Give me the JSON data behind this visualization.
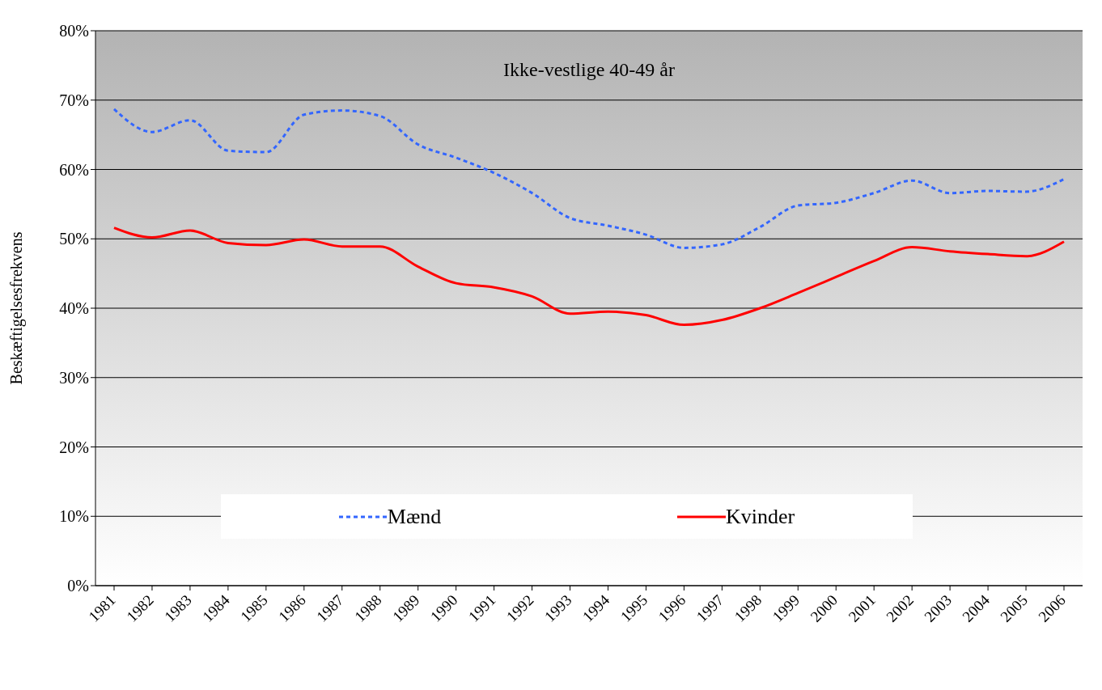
{
  "chart_data": {
    "type": "line",
    "title": "Ikke-vestlige 40-49 år",
    "ylabel": "Beskæftigelsesfrekvens",
    "categories": [
      "1981",
      "1982",
      "1983",
      "1984",
      "1985",
      "1986",
      "1987",
      "1988",
      "1989",
      "1990",
      "1991",
      "1992",
      "1993",
      "1994",
      "1995",
      "1996",
      "1997",
      "1998",
      "1999",
      "2000",
      "2001",
      "2002",
      "2003",
      "2004",
      "2005",
      "2006"
    ],
    "series": [
      {
        "name": "Mænd",
        "color": "#3366ff",
        "line_style": "dashed",
        "values": [
          68.7,
          65.4,
          67.1,
          62.7,
          62.5,
          67.9,
          68.5,
          67.7,
          63.6,
          61.7,
          59.5,
          56.6,
          53.0,
          51.9,
          50.6,
          48.7,
          49.2,
          51.7,
          54.8,
          55.2,
          56.6,
          58.4,
          56.6,
          56.9,
          56.8,
          58.6
        ]
      },
      {
        "name": "Kvinder",
        "color": "#ff0000",
        "line_style": "solid",
        "values": [
          51.6,
          50.2,
          51.2,
          49.4,
          49.1,
          49.9,
          48.9,
          48.9,
          46.0,
          43.6,
          43.0,
          41.7,
          39.2,
          39.5,
          39.0,
          37.6,
          38.3,
          40.0,
          42.2,
          44.5,
          46.8,
          48.8,
          48.2,
          47.8,
          47.5,
          49.6
        ]
      }
    ],
    "ylim": [
      0,
      80
    ],
    "yticks": [
      {
        "value": 0,
        "label": "0%"
      },
      {
        "value": 10,
        "label": "10%"
      },
      {
        "value": 20,
        "label": "20%"
      },
      {
        "value": 30,
        "label": "30%"
      },
      {
        "value": 40,
        "label": "40%"
      },
      {
        "value": 50,
        "label": "50%"
      },
      {
        "value": 60,
        "label": "60%"
      },
      {
        "value": 70,
        "label": "70%"
      },
      {
        "value": 80,
        "label": "80%"
      }
    ],
    "grid": "y",
    "legend": "bottom"
  }
}
